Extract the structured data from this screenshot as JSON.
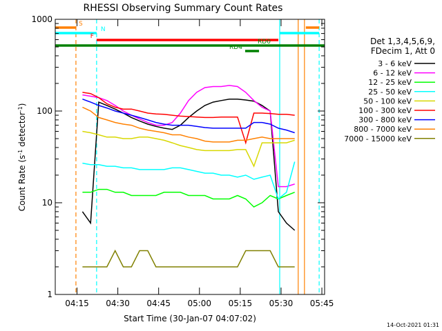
{
  "chart_data": {
    "type": "line",
    "title": "RHESSI Observing Summary Count Rates",
    "xlabel": "Start Time (30-Jan-07 04:07:02)",
    "ylabel_parts": [
      {
        "text": "Count Rate (s"
      },
      {
        "text": "-1",
        "sup": true
      },
      {
        "text": " detector"
      },
      {
        "text": "-1",
        "sup": true
      },
      {
        "text": ")"
      }
    ],
    "footer": "14-Oct-2021 01:31",
    "legend_header": [
      "Det 1,3,4,5,6,9,",
      "FDecim 1, Att 0"
    ],
    "ylog": true,
    "xlim": [
      0,
      99
    ],
    "ylim": [
      1,
      1000
    ],
    "xticks": [
      {
        "value": 8,
        "label": "04:15"
      },
      {
        "value": 23,
        "label": "04:30"
      },
      {
        "value": 38,
        "label": "04:45"
      },
      {
        "value": 53,
        "label": "05:00"
      },
      {
        "value": 68,
        "label": "05:15"
      },
      {
        "value": 83,
        "label": "05:30"
      },
      {
        "value": 98,
        "label": "05:45"
      }
    ],
    "yticks": [
      1,
      10,
      100,
      1000
    ],
    "yminorticks": [
      2,
      3,
      4,
      5,
      6,
      7,
      8,
      9,
      20,
      30,
      40,
      50,
      60,
      70,
      80,
      90,
      200,
      300,
      400,
      500,
      600,
      700,
      800,
      900
    ],
    "x": [
      10,
      13,
      16,
      19,
      22,
      25,
      28,
      31,
      34,
      37,
      40,
      43,
      46,
      49,
      52,
      55,
      58,
      61,
      64,
      67,
      70,
      73,
      76,
      79,
      82,
      85,
      88
    ],
    "series": [
      {
        "name": "3 - 6 keV",
        "color": "#000000",
        "values": [
          8,
          6,
          125,
          115,
          105,
          95,
          85,
          78,
          72,
          68,
          65,
          63,
          70,
          85,
          100,
          115,
          125,
          130,
          135,
          135,
          132,
          128,
          115,
          100,
          8,
          6,
          5
        ]
      },
      {
        "name": "6 - 12 keV",
        "color": "#ff00ff",
        "values": [
          150,
          145,
          140,
          130,
          115,
          100,
          90,
          82,
          75,
          70,
          70,
          75,
          95,
          130,
          160,
          180,
          185,
          185,
          190,
          185,
          160,
          130,
          110,
          100,
          15,
          15,
          16
        ]
      },
      {
        "name": "12 - 25 keV",
        "color": "#00ff00",
        "values": [
          13,
          13,
          14,
          14,
          13,
          13,
          12,
          12,
          12,
          12,
          13,
          13,
          13,
          12,
          12,
          12,
          11,
          11,
          11,
          12,
          11,
          9,
          10,
          12,
          11,
          12,
          13
        ]
      },
      {
        "name": "25 - 50 keV",
        "color": "#00ffff",
        "values": [
          27,
          26,
          26,
          25,
          25,
          24,
          24,
          23,
          23,
          23,
          23,
          24,
          24,
          23,
          22,
          21,
          21,
          20,
          20,
          19,
          20,
          18,
          19,
          20,
          11,
          13,
          28
        ]
      },
      {
        "name": "50 - 100 keV",
        "color": "#d8d800",
        "values": [
          60,
          58,
          55,
          52,
          52,
          50,
          50,
          52,
          52,
          50,
          48,
          45,
          42,
          40,
          38,
          37,
          37,
          37,
          37,
          38,
          38,
          25,
          45,
          45,
          45,
          45,
          48
        ]
      },
      {
        "name": "100 - 300 keV",
        "color": "#ff0000",
        "values": [
          160,
          155,
          140,
          120,
          110,
          105,
          105,
          100,
          95,
          93,
          92,
          90,
          88,
          87,
          86,
          85,
          85,
          86,
          86,
          86,
          45,
          95,
          95,
          94,
          92,
          92,
          90
        ]
      },
      {
        "name": "300 - 800 keV",
        "color": "#0000ff",
        "values": [
          135,
          125,
          115,
          108,
          100,
          95,
          90,
          85,
          80,
          75,
          72,
          70,
          70,
          70,
          68,
          66,
          65,
          65,
          65,
          65,
          65,
          75,
          75,
          72,
          65,
          62,
          58
        ]
      },
      {
        "name": "800 - 7000 keV",
        "color": "#ff8000",
        "values": [
          110,
          100,
          85,
          80,
          75,
          72,
          70,
          65,
          62,
          60,
          58,
          55,
          55,
          52,
          50,
          47,
          46,
          46,
          46,
          48,
          48,
          50,
          52,
          50,
          50,
          50,
          50
        ]
      },
      {
        "name": "7000 - 15000 keV",
        "color": "#808000",
        "values": [
          2,
          2,
          2,
          2,
          3,
          2,
          2,
          3,
          3,
          2,
          2,
          2,
          2,
          2,
          2,
          2,
          2,
          2,
          2,
          2,
          3,
          3,
          3,
          3,
          2,
          2,
          2
        ]
      }
    ],
    "flags": [
      {
        "name": "S",
        "color": "#ff8000",
        "segments": [
          [
            0,
            7.6
          ],
          [
            92.1,
            97
          ]
        ]
      },
      {
        "name": "N",
        "color": "#00ffff",
        "segments": [
          [
            0,
            15.2
          ],
          [
            82.5,
            97
          ]
        ]
      },
      {
        "name": "F",
        "color": "#ff0000",
        "segments": [
          [
            15.2,
            82
          ]
        ]
      },
      {
        "name": "RD0",
        "color": "#008000",
        "segments": [
          [
            0,
            99
          ]
        ]
      },
      {
        "name": "RD4",
        "color": "#008000",
        "segments": [
          [
            69.8,
            74.9
          ]
        ]
      }
    ],
    "vlines": [
      {
        "x": 7.6,
        "color": "#ff8000",
        "dashed": true
      },
      {
        "x": 15.2,
        "color": "#00ffff",
        "dashed": true
      },
      {
        "x": 82.5,
        "color": "#00ffff",
        "dashed": false
      },
      {
        "x": 89.3,
        "color": "#ff8000",
        "dashed": false
      },
      {
        "x": 91.6,
        "color": "#ff8000",
        "dashed": false
      },
      {
        "x": 97,
        "color": "#00ffff",
        "dashed": true
      }
    ]
  }
}
